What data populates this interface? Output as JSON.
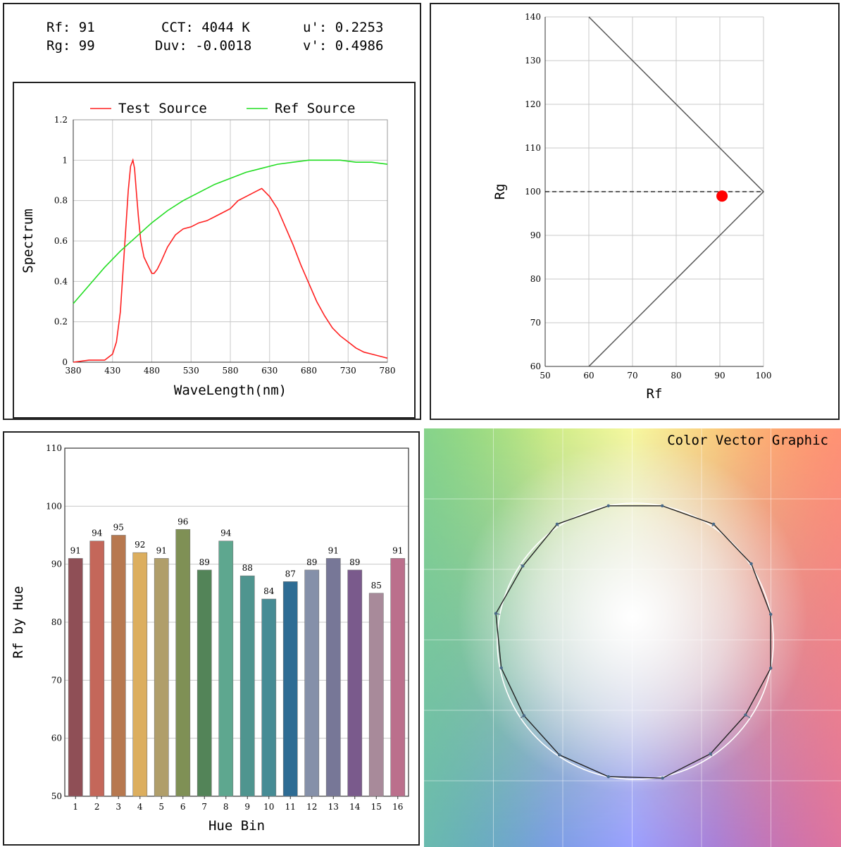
{
  "metrics": {
    "rf": "Rf: 91",
    "rg": "Rg: 99",
    "cct": "CCT: 4044 K",
    "duv": "Duv: -0.0018",
    "u": "u': 0.2253",
    "v": "v': 0.4986"
  },
  "chart_data": [
    {
      "type": "line",
      "xlabel": "WaveLength(nm)",
      "ylabel": "Spectrum",
      "xlim": [
        380,
        780
      ],
      "ylim": [
        0,
        1.2
      ],
      "xticks": [
        "380",
        "430",
        "480",
        "530",
        "580",
        "630",
        "680",
        "730",
        "780"
      ],
      "yticks": [
        "0",
        "0.2",
        "0.4",
        "0.6",
        "0.8",
        "1",
        "1.2"
      ],
      "grid": true,
      "legend": "top",
      "colors": {
        "test": "#ff2020",
        "ref": "#22dd22"
      },
      "series": [
        {
          "name": "Test Source",
          "x": [
            380,
            400,
            420,
            430,
            435,
            440,
            445,
            450,
            453,
            456,
            458,
            460,
            463,
            466,
            470,
            475,
            480,
            483,
            487,
            492,
            500,
            510,
            520,
            530,
            540,
            550,
            560,
            570,
            580,
            590,
            600,
            610,
            615,
            620,
            625,
            630,
            640,
            650,
            660,
            670,
            680,
            690,
            700,
            710,
            720,
            730,
            740,
            750,
            760,
            770,
            780
          ],
          "y": [
            0.0,
            0.01,
            0.01,
            0.04,
            0.1,
            0.25,
            0.55,
            0.85,
            0.97,
            1.0,
            0.96,
            0.86,
            0.72,
            0.6,
            0.52,
            0.48,
            0.44,
            0.44,
            0.46,
            0.5,
            0.57,
            0.63,
            0.66,
            0.67,
            0.69,
            0.7,
            0.72,
            0.74,
            0.76,
            0.8,
            0.82,
            0.84,
            0.85,
            0.86,
            0.84,
            0.82,
            0.76,
            0.67,
            0.58,
            0.48,
            0.39,
            0.3,
            0.23,
            0.17,
            0.13,
            0.1,
            0.07,
            0.05,
            0.04,
            0.03,
            0.02
          ]
        },
        {
          "name": "Ref Source",
          "x": [
            380,
            400,
            420,
            440,
            460,
            480,
            500,
            520,
            540,
            560,
            580,
            600,
            620,
            640,
            660,
            680,
            700,
            720,
            740,
            760,
            780
          ],
          "y": [
            0.29,
            0.38,
            0.47,
            0.55,
            0.62,
            0.69,
            0.75,
            0.8,
            0.84,
            0.88,
            0.91,
            0.94,
            0.96,
            0.98,
            0.99,
            1.0,
            1.0,
            1.0,
            0.99,
            0.99,
            0.98
          ]
        }
      ]
    },
    {
      "type": "scatter",
      "xlabel": "Rf",
      "ylabel": "Rg",
      "xlim": [
        50,
        100
      ],
      "ylim": [
        60,
        140
      ],
      "xticks": [
        "50",
        "60",
        "70",
        "80",
        "90",
        "100"
      ],
      "yticks": [
        "60",
        "70",
        "80",
        "90",
        "100",
        "110",
        "120",
        "130",
        "140"
      ],
      "grid": true,
      "boundary": {
        "x": [
          60,
          100,
          60
        ],
        "y": [
          140,
          100,
          60
        ]
      },
      "reference_line": {
        "y": 100
      },
      "point": {
        "x": 90.5,
        "y": 99,
        "color": "#ff0000"
      }
    },
    {
      "type": "bar",
      "xlabel": "Hue Bin",
      "ylabel": "Rf by Hue",
      "ylim": [
        50,
        110
      ],
      "yticks": [
        "50",
        "60",
        "70",
        "80",
        "90",
        "100",
        "110"
      ],
      "categories": [
        "1",
        "2",
        "3",
        "4",
        "5",
        "6",
        "7",
        "8",
        "9",
        "10",
        "11",
        "12",
        "13",
        "14",
        "15",
        "16"
      ],
      "values": [
        91,
        94,
        95,
        92,
        91,
        96,
        89,
        94,
        88,
        84,
        87,
        89,
        91,
        89,
        85,
        91
      ],
      "value_labels": [
        "91",
        "94",
        "95",
        "92",
        "91",
        "96",
        "89",
        "94",
        "88",
        "84",
        "87",
        "89",
        "91",
        "89",
        "85",
        "91"
      ],
      "colors": [
        "#8f4f56",
        "#c4675a",
        "#b7784f",
        "#dcae5e",
        "#b09e6a",
        "#7f9055",
        "#538458",
        "#5ea78f",
        "#4f958f",
        "#468c95",
        "#2e6c94",
        "#8590a9",
        "#777797",
        "#7a5a8c",
        "#a88a9a",
        "#bb6f8c"
      ]
    },
    {
      "type": "line",
      "title": "Color Vector Graphic",
      "reference_circle": {
        "r": 1.0
      },
      "test_radius": [
        1.0,
        1.01,
        1.02,
        1.0,
        1.0,
        1.02,
        0.98,
        1.03,
        0.99,
        0.97,
        0.99,
        1.0,
        1.01,
        0.98,
        0.96,
        1.0
      ]
    }
  ]
}
